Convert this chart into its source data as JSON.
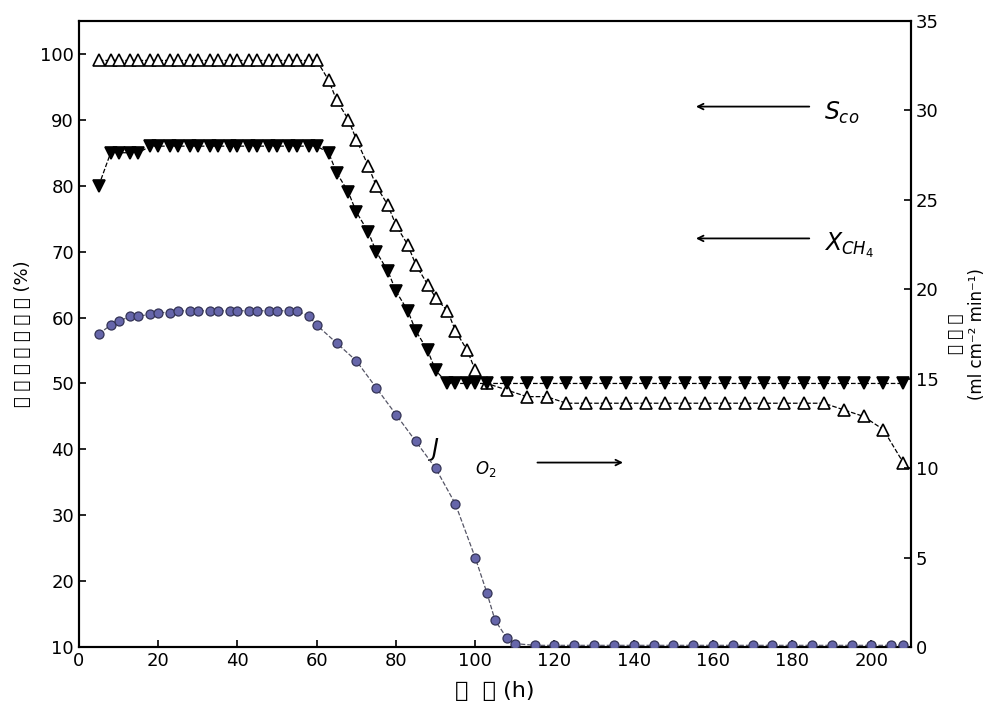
{
  "xlabel": "时  间 (h)",
  "ylabel_left": "转 化 率 或 选 择 性 (%)",
  "ylabel_right": "氧 通 量 (ml cm⁻² min⁻¹)",
  "xlim": [
    0,
    210
  ],
  "ylim_left": [
    10,
    105
  ],
  "ylim_right": [
    0,
    35
  ],
  "yticks_left": [
    10,
    20,
    30,
    40,
    50,
    60,
    70,
    80,
    90,
    100
  ],
  "yticks_right": [
    0,
    5,
    10,
    15,
    20,
    25,
    30,
    35
  ],
  "xticks": [
    0,
    20,
    40,
    60,
    80,
    100,
    120,
    140,
    160,
    180,
    200
  ],
  "S_co_x": [
    5,
    8,
    10,
    13,
    15,
    18,
    20,
    23,
    25,
    28,
    30,
    33,
    35,
    38,
    40,
    43,
    45,
    48,
    50,
    53,
    55,
    58,
    60,
    63,
    65,
    68,
    70,
    73,
    75,
    78,
    80,
    83,
    85,
    88,
    90,
    93,
    95,
    98,
    100,
    103,
    108,
    113,
    118,
    123,
    128,
    133,
    138,
    143,
    148,
    153,
    158,
    163,
    168,
    173,
    178,
    183,
    188,
    193,
    198,
    203,
    208
  ],
  "S_co_y": [
    99,
    99,
    99,
    99,
    99,
    99,
    99,
    99,
    99,
    99,
    99,
    99,
    99,
    99,
    99,
    99,
    99,
    99,
    99,
    99,
    99,
    99,
    99,
    96,
    93,
    90,
    87,
    83,
    80,
    77,
    74,
    71,
    68,
    65,
    63,
    61,
    58,
    55,
    52,
    50,
    49,
    48,
    48,
    47,
    47,
    47,
    47,
    47,
    47,
    47,
    47,
    47,
    47,
    47,
    47,
    47,
    47,
    46,
    45,
    43,
    38
  ],
  "X_CH4_x": [
    5,
    8,
    10,
    13,
    15,
    18,
    20,
    23,
    25,
    28,
    30,
    33,
    35,
    38,
    40,
    43,
    45,
    48,
    50,
    53,
    55,
    58,
    60,
    63,
    65,
    68,
    70,
    73,
    75,
    78,
    80,
    83,
    85,
    88,
    90,
    93,
    95,
    98,
    100,
    103,
    108,
    113,
    118,
    123,
    128,
    133,
    138,
    143,
    148,
    153,
    158,
    163,
    168,
    173,
    178,
    183,
    188,
    193,
    198,
    203,
    208
  ],
  "X_CH4_y": [
    80,
    85,
    85,
    85,
    85,
    86,
    86,
    86,
    86,
    86,
    86,
    86,
    86,
    86,
    86,
    86,
    86,
    86,
    86,
    86,
    86,
    86,
    86,
    85,
    82,
    79,
    76,
    73,
    70,
    67,
    64,
    61,
    58,
    55,
    52,
    50,
    50,
    50,
    50,
    50,
    50,
    50,
    50,
    50,
    50,
    50,
    50,
    50,
    50,
    50,
    50,
    50,
    50,
    50,
    50,
    50,
    50,
    50,
    50,
    50,
    50
  ],
  "J_O2_x": [
    5,
    8,
    10,
    13,
    15,
    18,
    20,
    23,
    25,
    28,
    30,
    33,
    35,
    38,
    40,
    43,
    45,
    48,
    50,
    53,
    55,
    58,
    60,
    65,
    70,
    75,
    80,
    85,
    90,
    95,
    100,
    103,
    105,
    108,
    110,
    115,
    120,
    125,
    130,
    135,
    140,
    145,
    150,
    155,
    160,
    165,
    170,
    175,
    180,
    185,
    190,
    195,
    200,
    205,
    208
  ],
  "J_O2_y": [
    17.5,
    18.0,
    18.2,
    18.5,
    18.5,
    18.6,
    18.7,
    18.7,
    18.8,
    18.8,
    18.8,
    18.8,
    18.8,
    18.8,
    18.8,
    18.8,
    18.8,
    18.8,
    18.8,
    18.8,
    18.8,
    18.5,
    18.0,
    17.0,
    16.0,
    14.5,
    13.0,
    11.5,
    10.0,
    8.0,
    5.0,
    3.0,
    1.5,
    0.5,
    0.2,
    0.1,
    0.1,
    0.1,
    0.1,
    0.1,
    0.1,
    0.1,
    0.1,
    0.1,
    0.1,
    0.1,
    0.1,
    0.1,
    0.1,
    0.1,
    0.1,
    0.1,
    0.1,
    0.1,
    0.1
  ]
}
